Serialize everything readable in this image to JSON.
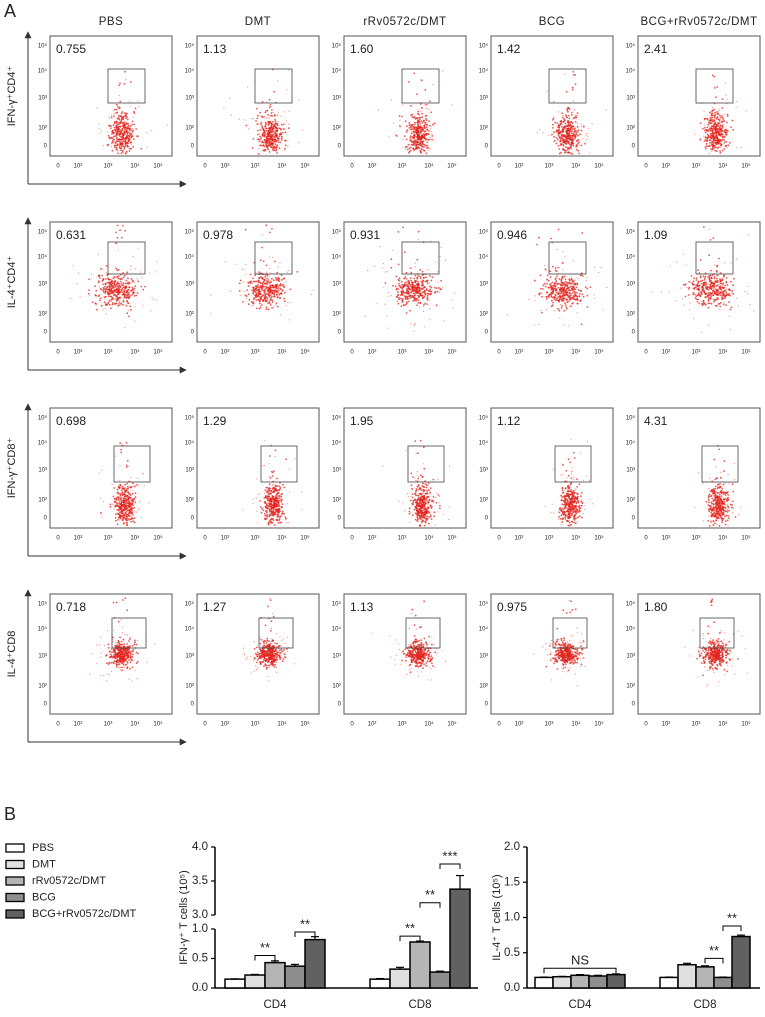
{
  "panel_a": {
    "label": "A",
    "columns": [
      "PBS",
      "DMT",
      "rRv0572c/DMT",
      "BCG",
      "BCG+rRv0572c/DMT"
    ],
    "axis_ticks": [
      "0",
      "10²",
      "10³",
      "10⁴",
      "10⁵"
    ],
    "rows": [
      {
        "label": "IFN-γ⁺CD4⁺",
        "gates": [
          "0.755",
          "1.13",
          "1.60",
          "1.42",
          "2.41"
        ]
      },
      {
        "label": "IL-4⁺CD4⁺",
        "gates": [
          "0.631",
          "0.978",
          "0.931",
          "0.946",
          "1.09"
        ]
      },
      {
        "label": "IFN-γ⁺CD8⁺",
        "gates": [
          "0.698",
          "1.29",
          "1.95",
          "1.12",
          "4.31"
        ]
      },
      {
        "label": "IL-4⁺CD8",
        "gates": [
          "0.718",
          "1.27",
          "1.13",
          "0.975",
          "1.80"
        ]
      }
    ]
  },
  "panel_b_label": "B",
  "chart_data": [
    {
      "type": "bar",
      "y_label": "IFN-γ⁺ T cells (10⁵)",
      "categories": [
        "CD4",
        "CD8"
      ],
      "ylim": [
        0,
        4.0
      ],
      "ybreak": [
        1.0,
        3.0
      ],
      "yticks": [
        {
          "value": 0,
          "label": "0.0"
        },
        {
          "value": 0.5,
          "label": "0.5"
        },
        {
          "value": 1,
          "label": "1.0"
        },
        {
          "value": 3,
          "label": "3.0"
        },
        {
          "value": 3.5,
          "label": "3.5"
        },
        {
          "value": 4,
          "label": "4.0"
        }
      ],
      "series": [
        {
          "name": "PBS",
          "color": "#ffffff",
          "values": [
            0.15,
            0.15
          ],
          "errors": [
            0.005,
            0.01
          ]
        },
        {
          "name": "DMT",
          "color": "#e0e0e0",
          "values": [
            0.22,
            0.32
          ],
          "errors": [
            0.01,
            0.03
          ]
        },
        {
          "name": "rRv0572c/DMT",
          "color": "#b5b5b5",
          "values": [
            0.43,
            0.78
          ],
          "errors": [
            0.03,
            0.015
          ]
        },
        {
          "name": "BCG",
          "color": "#8e8e8e",
          "values": [
            0.37,
            0.27
          ],
          "errors": [
            0.03,
            0.015
          ]
        },
        {
          "name": "BCG+rRv0572c/DMT",
          "color": "#616161",
          "values": [
            0.82,
            3.38
          ],
          "errors": [
            0.05,
            0.2
          ]
        }
      ],
      "annotations": [
        "**",
        "**",
        "**",
        "**",
        "***"
      ]
    },
    {
      "type": "bar",
      "y_label": "IL-4⁺ T cells (10⁵)",
      "categories": [
        "CD4",
        "CD8"
      ],
      "ylim": [
        0,
        2.0
      ],
      "yticks": [
        {
          "value": 0,
          "label": "0.0"
        },
        {
          "value": 0.5,
          "label": "0.5"
        },
        {
          "value": 1,
          "label": "1.0"
        },
        {
          "value": 1.5,
          "label": "1.5"
        },
        {
          "value": 2,
          "label": "2.0"
        }
      ],
      "series": [
        {
          "color": "#ffffff",
          "values": [
            0.15,
            0.15
          ],
          "errors": [
            0.005,
            0.005
          ]
        },
        {
          "color": "#e0e0e0",
          "values": [
            0.16,
            0.33
          ],
          "errors": [
            0.005,
            0.02
          ]
        },
        {
          "color": "#b5b5b5",
          "values": [
            0.18,
            0.3
          ],
          "errors": [
            0.01,
            0.015
          ]
        },
        {
          "color": "#8e8e8e",
          "values": [
            0.17,
            0.15
          ],
          "errors": [
            0.01,
            0.005
          ]
        },
        {
          "color": "#616161",
          "values": [
            0.19,
            0.73
          ],
          "errors": [
            0.01,
            0.02
          ]
        }
      ],
      "annotations": [
        "NS",
        "**",
        "**"
      ]
    }
  ]
}
